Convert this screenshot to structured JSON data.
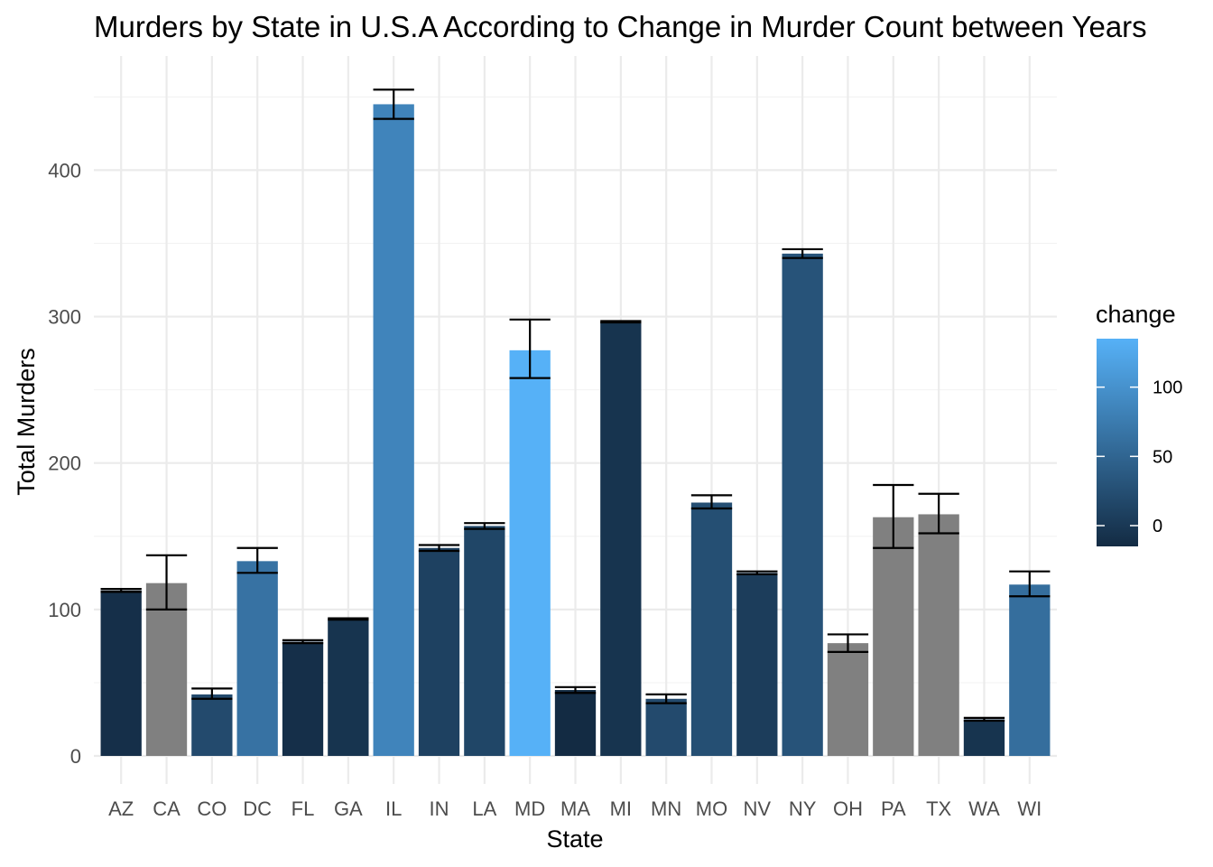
{
  "chart_data": {
    "type": "bar",
    "title": "Murders by State in U.S.A According to Change in Murder Count between Years",
    "xlabel": "State",
    "ylabel": "Total Murders",
    "ylim": [
      0,
      460
    ],
    "yticks": [
      0,
      100,
      200,
      300,
      400
    ],
    "grid": true,
    "legend": {
      "title": "change",
      "placement": "right",
      "type": "continuous",
      "range": [
        -15,
        135
      ],
      "ticks": [
        0,
        50,
        100
      ],
      "low_color": "#132B43",
      "high_color": "#56B1F7",
      "na_color": "#808080"
    },
    "categories": [
      "AZ",
      "CA",
      "CO",
      "DC",
      "FL",
      "GA",
      "IL",
      "IN",
      "LA",
      "MD",
      "MA",
      "MI",
      "MN",
      "MO",
      "NV",
      "NY",
      "OH",
      "PA",
      "TX",
      "WA",
      "WI"
    ],
    "values": [
      113,
      118,
      42,
      133,
      78,
      93,
      445,
      142,
      157,
      277,
      45,
      296,
      39,
      173,
      125,
      343,
      77,
      163,
      165,
      25,
      117
    ],
    "error_low": [
      112,
      100,
      39,
      125,
      77,
      93,
      435,
      140,
      155,
      258,
      43,
      296,
      36,
      169,
      124,
      340,
      71,
      142,
      152,
      24,
      109
    ],
    "error_high": [
      114,
      137,
      46,
      142,
      79,
      94,
      455,
      144,
      159,
      298,
      47,
      297,
      42,
      178,
      126,
      346,
      83,
      185,
      179,
      26,
      126
    ],
    "change": [
      -10,
      null,
      20,
      65,
      -10,
      -5,
      85,
      10,
      15,
      135,
      -15,
      -5,
      20,
      25,
      5,
      30,
      null,
      null,
      null,
      -5,
      60
    ]
  }
}
